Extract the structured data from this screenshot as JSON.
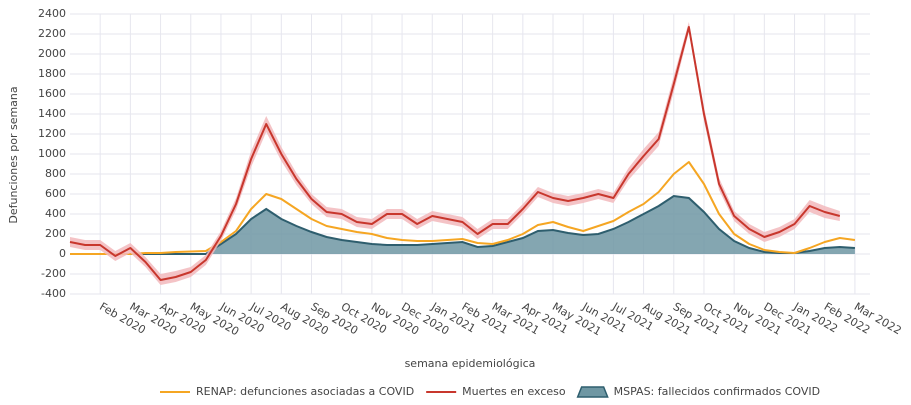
{
  "chart_data": {
    "type": "line",
    "x_label": "semana epidemiológica",
    "y_label": "Defunciones por semana",
    "categories": [
      null,
      null,
      "Feb 2020",
      null,
      "Mar 2020",
      null,
      "Apr 2020",
      null,
      "May 2020",
      null,
      "Jun 2020",
      null,
      "Jul 2020",
      null,
      "Aug 2020",
      null,
      "Sep 2020",
      null,
      "Oct 2020",
      null,
      "Nov 2020",
      null,
      "Dec 2020",
      null,
      "Jan 2021",
      null,
      "Feb 2021",
      null,
      "Mar 2021",
      null,
      "Apr 2021",
      null,
      "May 2021",
      null,
      "Jun 2021",
      null,
      "Jul 2021",
      null,
      "Aug 2021",
      null,
      "Sep 2021",
      null,
      "Oct 2021",
      null,
      "Nov 2021",
      null,
      "Dec 2021",
      null,
      "Jan 2022",
      null,
      "Feb 2022",
      null,
      "Mar 2022",
      null
    ],
    "series": [
      {
        "name": "RENAP: defunciones asociadas a COVID",
        "kind": "line",
        "color": "#f5a623",
        "values": [
          0,
          0,
          0,
          0,
          0,
          10,
          10,
          20,
          25,
          30,
          120,
          230,
          450,
          600,
          550,
          450,
          350,
          280,
          250,
          220,
          200,
          160,
          140,
          130,
          130,
          140,
          150,
          110,
          100,
          140,
          200,
          290,
          320,
          270,
          230,
          280,
          330,
          420,
          500,
          620,
          800,
          920,
          700,
          400,
          200,
          100,
          40,
          20,
          10,
          60,
          120,
          160,
          140,
          null
        ]
      },
      {
        "name": "Muertes en exceso",
        "kind": "line",
        "color": "#c8372d",
        "band": {
          "color": "#f2b8bc",
          "upper": [
            170,
            140,
            140,
            30,
            110,
            -30,
            -200,
            -170,
            -130,
            -10,
            230,
            560,
            1030,
            1380,
            1070,
            810,
            600,
            470,
            450,
            370,
            350,
            450,
            450,
            350,
            430,
            400,
            370,
            250,
            350,
            350,
            500,
            670,
            610,
            580,
            610,
            650,
            610,
            860,
            1050,
            1220,
            1780,
            2320,
            1470,
            760,
            430,
            300,
            220,
            270,
            350,
            540,
            480,
            430,
            null,
            null
          ],
          "lower": [
            70,
            40,
            40,
            -70,
            10,
            -130,
            -310,
            -280,
            -230,
            -110,
            130,
            440,
            870,
            1220,
            930,
            690,
            500,
            370,
            350,
            270,
            250,
            350,
            350,
            250,
            330,
            300,
            270,
            150,
            250,
            250,
            400,
            570,
            510,
            480,
            510,
            550,
            510,
            740,
            910,
            1080,
            1620,
            2220,
            1330,
            640,
            330,
            200,
            120,
            170,
            250,
            420,
            360,
            330,
            null,
            null
          ]
        },
        "values": [
          120,
          90,
          90,
          -20,
          60,
          -80,
          -260,
          -230,
          -180,
          -60,
          180,
          500,
          950,
          1300,
          1000,
          750,
          550,
          420,
          400,
          320,
          300,
          400,
          400,
          300,
          380,
          350,
          320,
          200,
          300,
          300,
          450,
          620,
          560,
          530,
          560,
          600,
          560,
          800,
          980,
          1150,
          1700,
          2270,
          1400,
          700,
          380,
          250,
          170,
          220,
          300,
          480,
          420,
          380,
          null,
          null
        ]
      },
      {
        "name": "MSPAS: fallecidos confirmados COVID",
        "kind": "area",
        "color": "#2e5e6e",
        "fill": "#6f97a3",
        "values": [
          0,
          0,
          0,
          0,
          0,
          0,
          0,
          0,
          0,
          0,
          100,
          200,
          350,
          450,
          350,
          280,
          220,
          170,
          140,
          120,
          100,
          90,
          90,
          90,
          100,
          110,
          120,
          70,
          80,
          120,
          160,
          230,
          240,
          210,
          190,
          200,
          250,
          320,
          400,
          480,
          580,
          560,
          420,
          250,
          130,
          60,
          20,
          10,
          10,
          30,
          60,
          70,
          60,
          null
        ]
      }
    ],
    "ylim": [
      -400,
      2400
    ],
    "yticks": [
      -400,
      -200,
      0,
      200,
      400,
      600,
      800,
      1000,
      1200,
      1400,
      1600,
      1800,
      2000,
      2200,
      2400
    ],
    "grid": true
  }
}
